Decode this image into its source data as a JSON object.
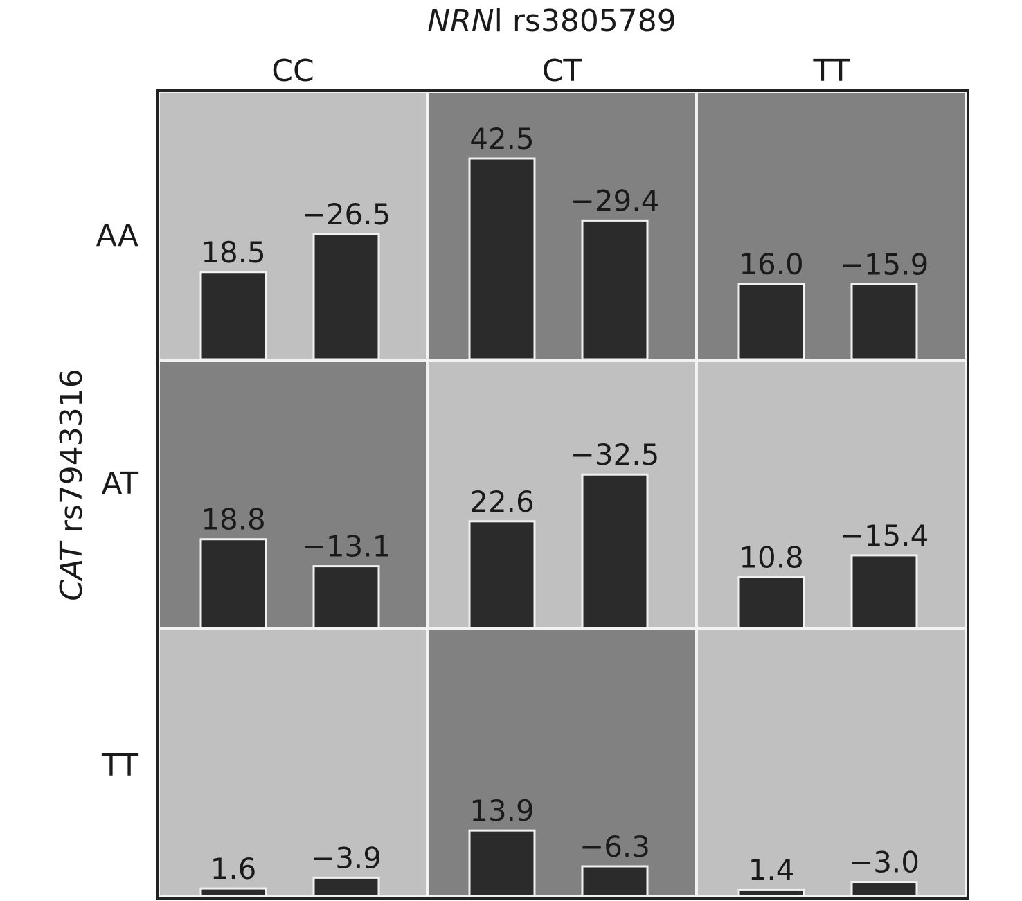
{
  "chart_data": {
    "type": "bar",
    "title_italic": "NRN",
    "title_rest": "l rs3805789",
    "ylabel_italic": "CAT",
    "ylabel_rest": " rs7943316",
    "columns": [
      "CC",
      "CT",
      "TT"
    ],
    "rows": [
      "AA",
      "AT",
      "TT"
    ],
    "cells": [
      [
        {
          "shade": "light",
          "values": [
            18.5,
            -26.5
          ],
          "labels": [
            "18.5",
            "−26.5"
          ]
        },
        {
          "shade": "dark",
          "values": [
            42.5,
            -29.4
          ],
          "labels": [
            "42.5",
            "−29.4"
          ]
        },
        {
          "shade": "dark",
          "values": [
            16.0,
            -15.9
          ],
          "labels": [
            "16.0",
            "−15.9"
          ]
        }
      ],
      [
        {
          "shade": "dark",
          "values": [
            18.8,
            -13.1
          ],
          "labels": [
            "18.8",
            "−13.1"
          ]
        },
        {
          "shade": "light",
          "values": [
            22.6,
            -32.5
          ],
          "labels": [
            "22.6",
            "−32.5"
          ]
        },
        {
          "shade": "light",
          "values": [
            10.8,
            -15.4
          ],
          "labels": [
            "10.8",
            "−15.4"
          ]
        }
      ],
      [
        {
          "shade": "light",
          "values": [
            1.6,
            -3.9
          ],
          "labels": [
            "1.6",
            "−3.9"
          ]
        },
        {
          "shade": "dark",
          "values": [
            13.9,
            -6.3
          ],
          "labels": [
            "13.9",
            "−6.3"
          ]
        },
        {
          "shade": "light",
          "values": [
            1.4,
            -3.0
          ],
          "labels": [
            "1.4",
            "−3.0"
          ]
        }
      ]
    ],
    "grid": false
  },
  "colors": {
    "light": "#c0c0c0",
    "dark": "#818181",
    "bar": "#2b2b2b",
    "frame": "#222222"
  }
}
